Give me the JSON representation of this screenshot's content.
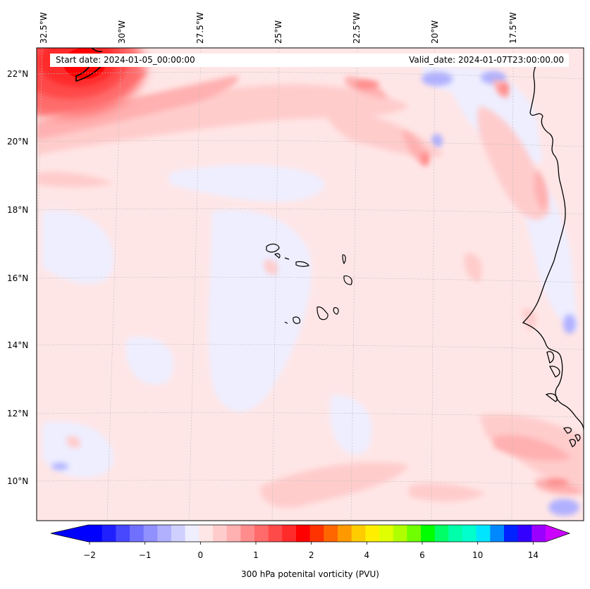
{
  "map": {
    "title_start": "Start date: 2024-01-05_00:00:00",
    "title_valid": "Valid_date: 2024-01-07T23:00:00.00",
    "lon_labels": [
      "32.5°W",
      "30°W",
      "27.5°W",
      "25°W",
      "22.5°W",
      "20°W",
      "17.5°W"
    ],
    "lat_labels": [
      "22°N",
      "20°N",
      "18°N",
      "16°N",
      "14°N",
      "12°N",
      "10°N"
    ]
  },
  "colorbar": {
    "label": "300 hPa potenital vorticity (PVU)",
    "ticks": [
      "−2",
      "−1",
      "0",
      "1",
      "2",
      "4",
      "6",
      "10",
      "14"
    ],
    "colors": [
      "#0000ff",
      "#2020ff",
      "#4848ff",
      "#7070ff",
      "#9090ff",
      "#b0b0ff",
      "#d0d0ff",
      "#eeeeff",
      "#ffe6e6",
      "#ffcccc",
      "#ffb0b0",
      "#ff8c8c",
      "#ff6a6a",
      "#ff4a4a",
      "#ff2a2a",
      "#ff0000",
      "#ff3300",
      "#ff6600",
      "#ff9900",
      "#ffcc00",
      "#ffee00",
      "#e0ff00",
      "#b0ff00",
      "#70ff00",
      "#00ff00",
      "#00ff66",
      "#00ffaa",
      "#00ffcc",
      "#00e5ff",
      "#0088ff",
      "#0022ff",
      "#3300ff",
      "#9900ff"
    ],
    "under_color": "#0000ff",
    "over_color": "#cc00ff"
  }
}
